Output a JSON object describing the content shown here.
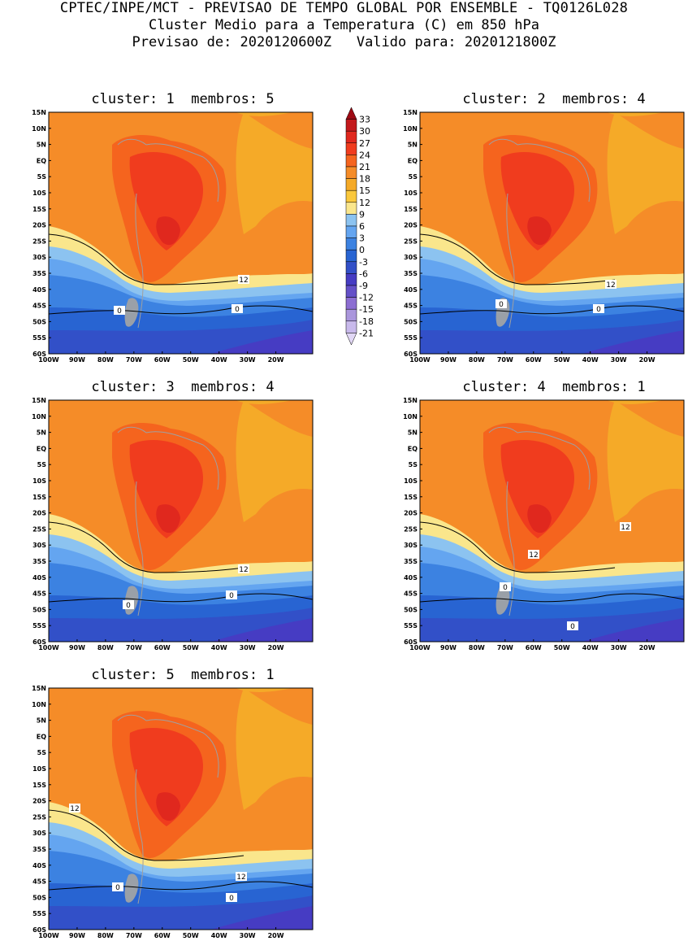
{
  "header": {
    "line1": "CPTEC/INPE/MCT - PREVISAO DE TEMPO GLOBAL POR ENSEMBLE - TQ0126L028",
    "line2": "Cluster Medio para a Temperatura (C) em 850 hPa",
    "line3": "Previsao de: 2020120600Z   Valido para: 2020121800Z"
  },
  "panels": [
    {
      "title": "cluster: 1  membros: 5",
      "labels": [
        "12",
        "0",
        "0"
      ]
    },
    {
      "title": "cluster: 2  membros: 4",
      "labels": [
        "12",
        "0",
        "0"
      ]
    },
    {
      "title": "cluster: 3  membros: 4",
      "labels": [
        "12",
        "0",
        "0"
      ]
    },
    {
      "title": "cluster: 4  membros: 1",
      "labels": [
        "12",
        "12",
        "0",
        "0"
      ]
    },
    {
      "title": "cluster: 5  membros: 1",
      "labels": [
        "12",
        "12",
        "0",
        "0"
      ]
    }
  ],
  "lat_labels": [
    "15N",
    "10N",
    "5N",
    "EQ",
    "5S",
    "10S",
    "15S",
    "20S",
    "25S",
    "30S",
    "35S",
    "40S",
    "45S",
    "50S",
    "55S",
    "60S"
  ],
  "lon_labels": [
    "100W",
    "90W",
    "80W",
    "70W",
    "60W",
    "50W",
    "40W",
    "30W",
    "20W"
  ],
  "colorbar": {
    "labels": [
      "33",
      "30",
      "27",
      "24",
      "21",
      "18",
      "15",
      "12",
      "9",
      "6",
      "3",
      "0",
      "-3",
      "-6",
      "-9",
      "-12",
      "-15",
      "-18",
      "-21"
    ],
    "colors": [
      "#9e0a14",
      "#c3191c",
      "#e0281e",
      "#f03c1e",
      "#f5641e",
      "#f58c28",
      "#f5aa28",
      "#fac83c",
      "#fae68c",
      "#8cc3f0",
      "#64a5f0",
      "#3c82e1",
      "#2864d2",
      "#3250c8",
      "#463cc3",
      "#6450c8",
      "#8c6ed2",
      "#aa96dc",
      "#c8b9eb",
      "#e1d7f5"
    ]
  }
}
